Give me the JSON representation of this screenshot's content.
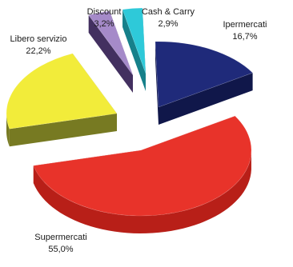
{
  "chart_data": {
    "type": "pie",
    "style": "3d-exploded",
    "title": "",
    "slices": [
      {
        "name": "Ipermercati",
        "value": 16.7,
        "label": "16,7%",
        "color": "#1f2a7a",
        "side_color": "#10174a"
      },
      {
        "name": "Supermercati",
        "value": 55.0,
        "label": "55,0%",
        "color": "#e8332a",
        "side_color": "#b81f18"
      },
      {
        "name": "Libero servizio",
        "value": 22.2,
        "label": "22,2%",
        "color": "#f2ec3a",
        "side_color": "#777a22"
      },
      {
        "name": "Discount",
        "value": 3.2,
        "label": "3,2%",
        "color": "#a58ac9",
        "side_color": "#433060"
      },
      {
        "name": "Cash & Carry",
        "value": 2.9,
        "label": "2,9%",
        "color": "#2ec9d9",
        "side_color": "#16808a"
      }
    ]
  }
}
